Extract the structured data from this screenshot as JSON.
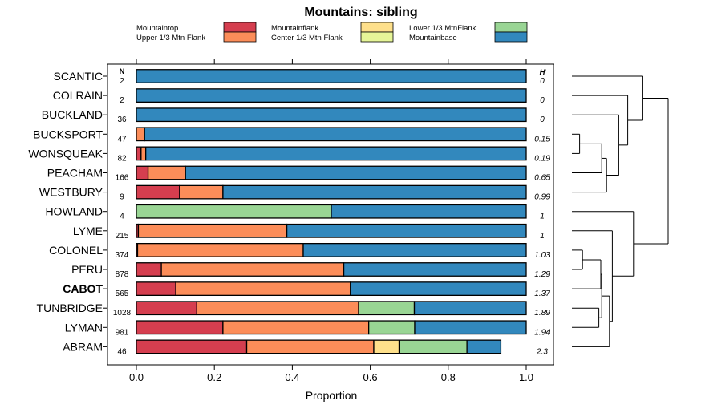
{
  "chart_data": {
    "type": "bar",
    "orientation": "horizontal",
    "stacked": true,
    "title": "Mountains: sibling",
    "xlabel": "Proportion",
    "ylabel": "",
    "xlim": [
      0,
      1
    ],
    "xticks": [
      "0.0",
      "0.2",
      "0.4",
      "0.6",
      "0.8",
      "1.0"
    ],
    "xtick_values": [
      0,
      0.2,
      0.4,
      0.6,
      0.8,
      1.0
    ],
    "n_header": "N",
    "h_header": "H",
    "legend": [
      {
        "name": "Mountaintop",
        "color": "#d53e4f"
      },
      {
        "name": "Upper 1/3 Mtn Flank",
        "color": "#fc8d59"
      },
      {
        "name": "Mountainflank",
        "color": "#fee08b"
      },
      {
        "name": "Center 1/3 Mtn Flank",
        "color": "#e6f598"
      },
      {
        "name": "Lower 1/3 MtnFlank",
        "color": "#99d594"
      },
      {
        "name": "Mountainbase",
        "color": "#3288bd"
      }
    ],
    "series_names": [
      "Mountaintop",
      "Upper 1/3 Mtn Flank",
      "Mountainflank",
      "Center 1/3 Mtn Flank",
      "Lower 1/3 MtnFlank",
      "Mountainbase"
    ],
    "categories": [
      "SCANTIC",
      "COLRAIN",
      "BUCKLAND",
      "BUCKSPORT",
      "WONSQUEAK",
      "PEACHAM",
      "WESTBURY",
      "HOWLAND",
      "LYME",
      "COLONEL",
      "PERU",
      "CABOT",
      "TUNBRIDGE",
      "LYMAN",
      "ABRAM"
    ],
    "highlighted_category": "CABOT",
    "n_values": [
      "2",
      "2",
      "36",
      "47",
      "82",
      "166",
      "9",
      "4",
      "215",
      "374",
      "878",
      "565",
      "1028",
      "981",
      "46"
    ],
    "h_values": [
      "0",
      "0",
      "0",
      "0.15",
      "0.19",
      "0.65",
      "0.99",
      "1",
      "1",
      "1.03",
      "1.29",
      "1.37",
      "1.89",
      "1.94",
      "2.3"
    ],
    "rows": [
      {
        "name": "SCANTIC",
        "values": [
          0,
          0,
          0,
          0,
          0,
          1.0
        ]
      },
      {
        "name": "COLRAIN",
        "values": [
          0,
          0,
          0,
          0,
          0,
          1.0
        ]
      },
      {
        "name": "BUCKLAND",
        "values": [
          0,
          0,
          0,
          0,
          0,
          1.0
        ]
      },
      {
        "name": "BUCKSPORT",
        "values": [
          0,
          0.021,
          0,
          0,
          0,
          0.979
        ]
      },
      {
        "name": "WONSQUEAK",
        "values": [
          0.012,
          0.012,
          0,
          0,
          0,
          0.976
        ]
      },
      {
        "name": "PEACHAM",
        "values": [
          0.03,
          0.096,
          0,
          0,
          0,
          0.874
        ]
      },
      {
        "name": "WESTBURY",
        "values": [
          0.111,
          0.111,
          0,
          0,
          0,
          0.778
        ]
      },
      {
        "name": "HOWLAND",
        "values": [
          0,
          0,
          0,
          0,
          0.5,
          0.5
        ]
      },
      {
        "name": "LYME",
        "values": [
          0.005,
          0.381,
          0,
          0,
          0,
          0.614
        ]
      },
      {
        "name": "COLONEL",
        "values": [
          0.003,
          0.425,
          0,
          0,
          0,
          0.572
        ]
      },
      {
        "name": "PERU",
        "values": [
          0.064,
          0.468,
          0,
          0,
          0,
          0.468
        ]
      },
      {
        "name": "CABOT",
        "values": [
          0.101,
          0.448,
          0,
          0,
          0,
          0.451
        ]
      },
      {
        "name": "TUNBRIDGE",
        "values": [
          0.155,
          0.415,
          0,
          0,
          0.143,
          0.287
        ]
      },
      {
        "name": "LYMAN",
        "values": [
          0.222,
          0.374,
          0,
          0,
          0.118,
          0.286
        ]
      },
      {
        "name": "ABRAM",
        "values": [
          0.283,
          0.326,
          0.065,
          0,
          0.174,
          0.087
        ]
      }
    ],
    "dendrogram": {
      "node_heights": [
        0.73,
        0.58,
        0.48,
        0.08,
        0.31,
        0.36,
        1.0,
        0.64,
        0.42,
        0.11,
        0.3,
        0.31,
        0.28,
        0.39,
        0.1
      ]
    }
  }
}
